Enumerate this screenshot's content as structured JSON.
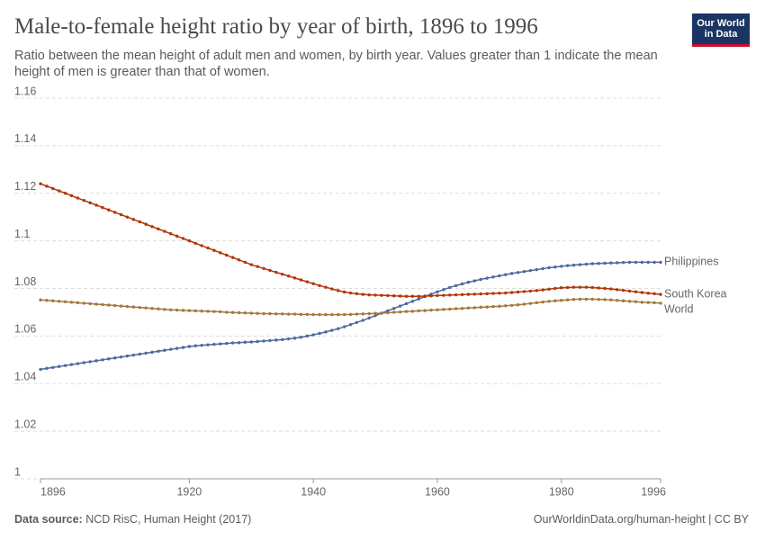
{
  "chart_data": {
    "type": "line",
    "title": "Male-to-female height ratio by year of birth, 1896 to 1996",
    "subtitle": "Ratio between the mean height of adult men and women, by birth year. Values greater than 1 indicate the mean height of men is greater than that of women.",
    "logo": "Our World in Data",
    "source_label": "Data source:",
    "source": "NCD RisC, Human Height (2017)",
    "credit": "OurWorldinData.org/human-height | CC BY",
    "x": [
      1896,
      1897,
      1898,
      1899,
      1900,
      1901,
      1902,
      1903,
      1904,
      1905,
      1906,
      1907,
      1908,
      1909,
      1910,
      1911,
      1912,
      1913,
      1914,
      1915,
      1916,
      1917,
      1918,
      1919,
      1920,
      1921,
      1922,
      1923,
      1924,
      1925,
      1926,
      1927,
      1928,
      1929,
      1930,
      1931,
      1932,
      1933,
      1934,
      1935,
      1936,
      1937,
      1938,
      1939,
      1940,
      1941,
      1942,
      1943,
      1944,
      1945,
      1946,
      1947,
      1948,
      1949,
      1950,
      1951,
      1952,
      1953,
      1954,
      1955,
      1956,
      1957,
      1958,
      1959,
      1960,
      1961,
      1962,
      1963,
      1964,
      1965,
      1966,
      1967,
      1968,
      1969,
      1970,
      1971,
      1972,
      1973,
      1974,
      1975,
      1976,
      1977,
      1978,
      1979,
      1980,
      1981,
      1982,
      1983,
      1984,
      1985,
      1986,
      1987,
      1988,
      1989,
      1990,
      1991,
      1992,
      1993,
      1994,
      1995,
      1996
    ],
    "series": [
      {
        "name": "Philippines",
        "color": "#4c6a9c",
        "values": [
          1.046,
          1.0464,
          1.0468,
          1.0472,
          1.0476,
          1.048,
          1.0484,
          1.0488,
          1.0492,
          1.0496,
          1.05,
          1.0504,
          1.0508,
          1.0512,
          1.0516,
          1.052,
          1.0524,
          1.0528,
          1.0532,
          1.0536,
          1.054,
          1.0544,
          1.0548,
          1.0552,
          1.0556,
          1.0559,
          1.0561,
          1.0563,
          1.0565,
          1.0567,
          1.0569,
          1.0571,
          1.0572,
          1.0574,
          1.0575,
          1.0577,
          1.0579,
          1.0581,
          1.0583,
          1.0585,
          1.0588,
          1.0591,
          1.0595,
          1.06,
          1.0605,
          1.0611,
          1.0617,
          1.0624,
          1.0631,
          1.0639,
          1.0648,
          1.0657,
          1.0666,
          1.0676,
          1.0686,
          1.0696,
          1.0706,
          1.0716,
          1.0726,
          1.0736,
          1.0746,
          1.0756,
          1.0766,
          1.0776,
          1.0786,
          1.0795,
          1.0804,
          1.0812,
          1.0819,
          1.0826,
          1.0832,
          1.0838,
          1.0843,
          1.0848,
          1.0853,
          1.0858,
          1.0863,
          1.0867,
          1.0871,
          1.0875,
          1.0879,
          1.0883,
          1.0887,
          1.089,
          1.0893,
          1.0896,
          1.0898,
          1.09,
          1.0902,
          1.0904,
          1.0905,
          1.0906,
          1.0907,
          1.0908,
          1.0909,
          1.091,
          1.091,
          1.091,
          1.091,
          1.091,
          1.091
        ]
      },
      {
        "name": "South Korea",
        "color": "#b13507",
        "values": [
          1.124,
          1.123,
          1.122,
          1.121,
          1.12,
          1.119,
          1.118,
          1.117,
          1.116,
          1.115,
          1.114,
          1.113,
          1.112,
          1.111,
          1.11,
          1.109,
          1.108,
          1.107,
          1.106,
          1.105,
          1.104,
          1.103,
          1.102,
          1.101,
          1.1,
          1.099,
          1.098,
          1.097,
          1.096,
          1.095,
          1.094,
          1.093,
          1.092,
          1.091,
          1.09,
          1.0892,
          1.0884,
          1.0876,
          1.0868,
          1.086,
          1.0852,
          1.0844,
          1.0836,
          1.0828,
          1.082,
          1.0812,
          1.0805,
          1.0798,
          1.0791,
          1.0785,
          1.0781,
          1.0778,
          1.0775,
          1.0773,
          1.0772,
          1.0771,
          1.077,
          1.0769,
          1.0768,
          1.0767,
          1.0767,
          1.0767,
          1.0768,
          1.0769,
          1.077,
          1.0771,
          1.0772,
          1.0773,
          1.0774,
          1.0775,
          1.0776,
          1.0777,
          1.0778,
          1.0779,
          1.078,
          1.0781,
          1.0783,
          1.0785,
          1.0787,
          1.0789,
          1.0791,
          1.0794,
          1.0797,
          1.08,
          1.0803,
          1.0804,
          1.0805,
          1.0805,
          1.0805,
          1.0804,
          1.0802,
          1.08,
          1.0798,
          1.0795,
          1.0792,
          1.0789,
          1.0786,
          1.0783,
          1.078,
          1.0778,
          1.0775
        ]
      },
      {
        "name": "World",
        "color": "#a2793b",
        "values": [
          1.0752,
          1.075,
          1.0748,
          1.0746,
          1.0744,
          1.0742,
          1.074,
          1.0738,
          1.0736,
          1.0734,
          1.0732,
          1.073,
          1.0728,
          1.0726,
          1.0724,
          1.0722,
          1.072,
          1.0718,
          1.0716,
          1.0714,
          1.0712,
          1.071,
          1.0709,
          1.0708,
          1.0707,
          1.0706,
          1.0705,
          1.0704,
          1.0703,
          1.0702,
          1.07,
          1.0699,
          1.0698,
          1.0697,
          1.0696,
          1.0695,
          1.0694,
          1.0694,
          1.0693,
          1.0693,
          1.0692,
          1.0692,
          1.0691,
          1.0691,
          1.069,
          1.069,
          1.069,
          1.069,
          1.069,
          1.069,
          1.0691,
          1.0692,
          1.0693,
          1.0694,
          1.0695,
          1.0696,
          1.0698,
          1.07,
          1.0701,
          1.0703,
          1.0704,
          1.0706,
          1.0707,
          1.0709,
          1.071,
          1.0712,
          1.0713,
          1.0715,
          1.0716,
          1.0718,
          1.0719,
          1.0721,
          1.0722,
          1.0724,
          1.0725,
          1.0727,
          1.0729,
          1.0731,
          1.0734,
          1.0737,
          1.074,
          1.0743,
          1.0746,
          1.0748,
          1.075,
          1.0752,
          1.0754,
          1.0755,
          1.0755,
          1.0755,
          1.0754,
          1.0753,
          1.0752,
          1.075,
          1.0748,
          1.0746,
          1.0744,
          1.0742,
          1.0741,
          1.074,
          1.0738
        ]
      }
    ],
    "xlim": [
      1896,
      1996
    ],
    "xticks": [
      1896,
      1920,
      1940,
      1960,
      1980,
      1996
    ],
    "ylim": [
      1,
      1.16
    ],
    "yticks": [
      1,
      1.02,
      1.04,
      1.06,
      1.08,
      1.1,
      1.12,
      1.14,
      1.16
    ],
    "grid": true
  }
}
